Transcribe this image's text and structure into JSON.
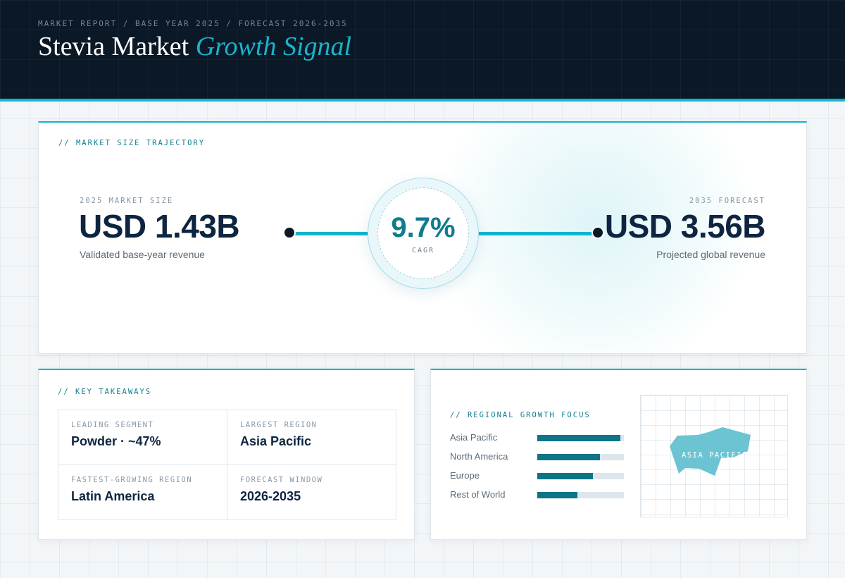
{
  "header": {
    "breadcrumb": "MARKET REPORT / BASE YEAR 2025 / FORECAST 2026-2035",
    "title_main": "Stevia Market",
    "title_accent": "Growth Signal"
  },
  "trajectory": {
    "section_label": "// MARKET SIZE TRAJECTORY",
    "start": {
      "label": "2025 MARKET SIZE",
      "value": "USD 1.43B",
      "desc": "Validated base-year revenue"
    },
    "end": {
      "label": "2035 FORECAST",
      "value": "USD 3.56B",
      "desc": "Projected global revenue"
    },
    "cagr": {
      "value": "9.7%",
      "label": "CAGR"
    }
  },
  "takeaways": {
    "section_label": "// KEY TAKEAWAYS",
    "items": [
      {
        "label": "LEADING SEGMENT",
        "value": "Powder · ~47%"
      },
      {
        "label": "LARGEST REGION",
        "value": "Asia Pacific"
      },
      {
        "label": "FASTEST-GROWING REGION",
        "value": "Latin America"
      },
      {
        "label": "FORECAST WINDOW",
        "value": "2026-2035"
      }
    ]
  },
  "regional": {
    "section_label": "// REGIONAL GROWTH FOCUS",
    "bars": [
      {
        "name": "Asia Pacific",
        "share": 0.96
      },
      {
        "name": "North America",
        "share": 0.72
      },
      {
        "name": "Europe",
        "share": 0.64
      },
      {
        "name": "Rest of World",
        "share": 0.46
      }
    ],
    "map_label": "ASIA PACIFIC"
  },
  "colors": {
    "accent": "#12b4cc",
    "header_bg": "#0b1826",
    "bar_fill": "#0e7488",
    "bar_track": "#dce6ec",
    "map_region": "#6cc4d2"
  }
}
